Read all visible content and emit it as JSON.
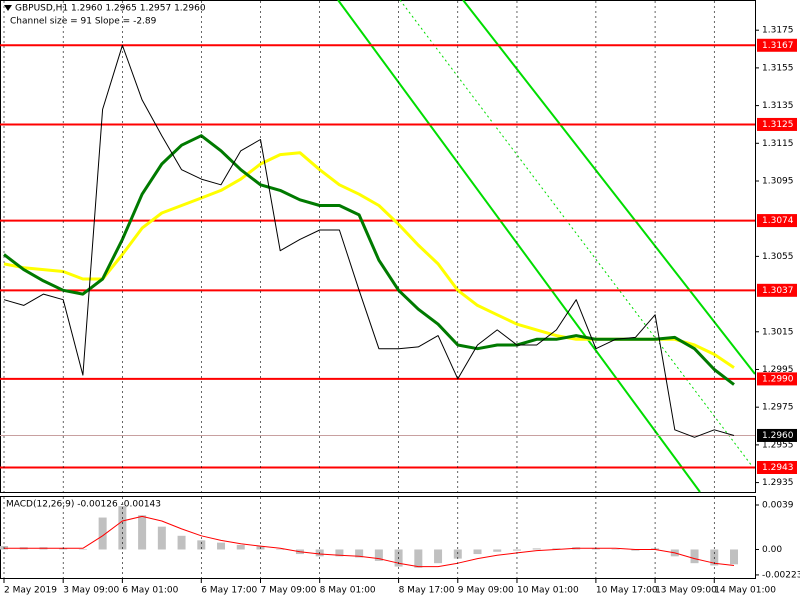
{
  "chart_data": {
    "type": "line",
    "title": "GBPUSD,H1  1.2960 1.2965 1.2957 1.2960",
    "subtitle": "Channel size = 91 Slope = -2.89",
    "categories": [
      "2 May 2019",
      null,
      null,
      "3 May 09:00",
      null,
      null,
      "6 May 01:00",
      null,
      null,
      null,
      "6 May 17:00",
      null,
      null,
      "7 May 09:00",
      null,
      null,
      "8 May 01:00",
      null,
      null,
      null,
      "8 May 17:00",
      null,
      null,
      "9 May 09:00",
      null,
      null,
      "10 May 01:00",
      null,
      null,
      null,
      "10 May 17:00",
      null,
      null,
      "13 May 09:00",
      null,
      null,
      "14 May 01:00",
      null
    ],
    "series": [
      {
        "color": "#000000",
        "values": [
          1.3032,
          1.3029,
          1.3035,
          1.3032,
          1.2992,
          1.3133,
          1.3167,
          1.3138,
          1.3119,
          1.3101,
          1.3096,
          1.3093,
          1.3111,
          1.3117,
          1.3058,
          1.3064,
          1.3069,
          1.3069,
          1.3037,
          1.3006,
          1.3006,
          1.3007,
          1.3013,
          1.299,
          1.3008,
          1.3016,
          1.3008,
          1.3008,
          1.3016,
          1.3032,
          1.3006,
          1.3011,
          1.3012,
          1.3024,
          1.2963,
          1.2959,
          1.2963,
          1.296
        ]
      },
      {
        "color": "#ffff00",
        "values": [
          1.3051,
          1.3049,
          1.3048,
          1.3047,
          1.3043,
          1.3043,
          1.3056,
          1.307,
          1.3078,
          1.3082,
          1.3086,
          1.309,
          1.3096,
          1.3104,
          1.3109,
          1.311,
          1.3101,
          1.3093,
          1.3088,
          1.3082,
          1.3072,
          1.3061,
          1.3051,
          1.3037,
          1.3029,
          1.3024,
          1.3019,
          1.3016,
          1.3013,
          1.3011,
          1.3011,
          1.3011,
          1.3011,
          1.3011,
          1.3011,
          1.3008,
          1.3003,
          1.2996
        ]
      },
      {
        "color": "#007a00",
        "values": [
          1.3056,
          1.3048,
          1.3042,
          1.3037,
          1.3035,
          1.3043,
          1.3064,
          1.3088,
          1.3104,
          1.3114,
          1.3119,
          1.3111,
          1.3101,
          1.3093,
          1.309,
          1.3085,
          1.3082,
          1.3082,
          1.3077,
          1.3053,
          1.3037,
          1.3027,
          1.3019,
          1.3008,
          1.3006,
          1.3008,
          1.3008,
          1.3011,
          1.3011,
          1.3013,
          1.3011,
          1.3011,
          1.3011,
          1.3011,
          1.3012,
          1.3006,
          1.2995,
          1.2987
        ]
      }
    ],
    "ylim": [
      1.293,
      1.3182
    ],
    "yticks": [
      1.3175,
      1.3155,
      1.3135,
      1.3115,
      1.3095,
      1.3055,
      1.3015,
      1.2995,
      1.2975,
      1.2955,
      1.2935
    ],
    "levels": [
      1.3167,
      1.3125,
      1.3074,
      1.3037,
      {
        "value": 1.299,
        "label": "1.2990"
      },
      1.2943
    ],
    "level_color": "#ff0000",
    "last_price": {
      "value": 1.296,
      "label": "1.2960"
    },
    "grid": true,
    "macd": {
      "type": "bar",
      "title": "MACD(12,26,9) -0.00126 -0.00143",
      "color": "#c0c0c0",
      "values": [
        0.0003,
        0.0002,
        0.0002,
        0.0001,
        0.0,
        0.0028,
        0.0038,
        0.003,
        0.002,
        0.0012,
        0.0008,
        0.0006,
        0.0004,
        0.0003,
        0.0,
        -0.0004,
        -0.0006,
        -0.0006,
        -0.0007,
        -0.001,
        -0.0015,
        -0.0016,
        -0.0012,
        -0.0008,
        -0.0004,
        -0.0002,
        -0.0001,
        0.0001,
        0.0001,
        0.0002,
        0.0001,
        0.0,
        -0.0001,
        0.0001,
        -0.0006,
        -0.0012,
        -0.0014,
        -0.0013
      ],
      "signal": {
        "color": "#ff0000",
        "values": [
          0.0001,
          0.0001,
          0.0001,
          0.0001,
          0.0001,
          0.0012,
          0.0025,
          0.0029,
          0.0025,
          0.0018,
          0.0012,
          0.0008,
          0.0005,
          0.0003,
          0.0001,
          -0.0002,
          -0.0004,
          -0.0005,
          -0.0006,
          -0.0008,
          -0.0012,
          -0.0015,
          -0.0015,
          -0.0012,
          -0.0008,
          -0.0005,
          -0.0003,
          -0.0001,
          0.0,
          0.0001,
          0.0001,
          0.0001,
          0.0,
          0.0,
          -0.0003,
          -0.0008,
          -0.0012,
          -0.0014
        ]
      },
      "ylim": [
        -0.0025,
        0.0046
      ],
      "yticks": [
        0.0039,
        {
          "value": 0,
          "label": "0.00"
        },
        -0.00223
      ]
    }
  }
}
